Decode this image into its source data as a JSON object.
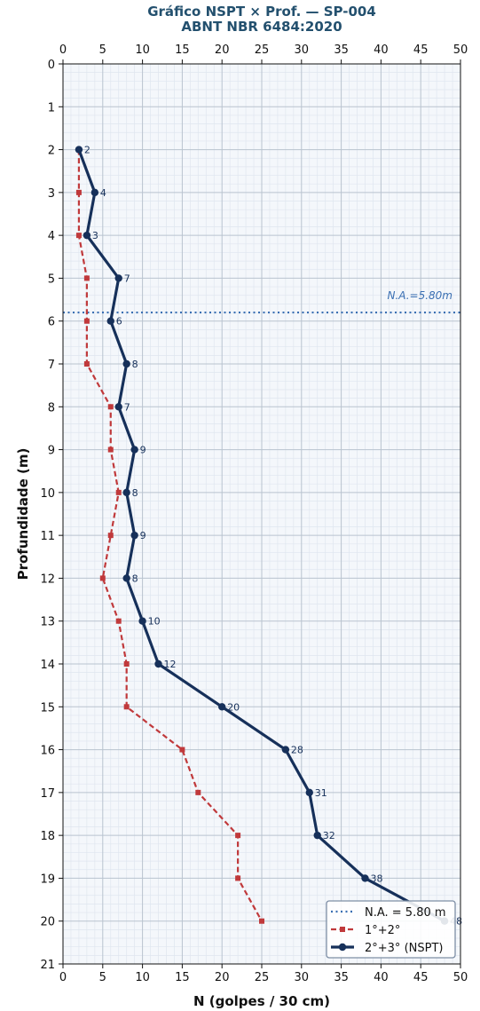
{
  "chart_data": {
    "type": "line",
    "title": "Gráfico NSPT × Prof. — SP-004",
    "subtitle": "ABNT NBR 6484:2020",
    "xlabel": "N (golpes / 30 cm)",
    "ylabel": "Profundidade (m)",
    "xlim": [
      0,
      50
    ],
    "ylim": [
      0,
      21
    ],
    "y_inverted": true,
    "x_ticks": [
      0,
      5,
      10,
      15,
      20,
      25,
      30,
      35,
      40,
      45,
      50
    ],
    "y_ticks": [
      0,
      1,
      2,
      3,
      4,
      5,
      6,
      7,
      8,
      9,
      10,
      11,
      12,
      13,
      14,
      15,
      16,
      17,
      18,
      19,
      20,
      21
    ],
    "x_ticks_top": true,
    "grid": true,
    "minor_grid": true,
    "legend_position": "bottom-right",
    "water_level": {
      "depth": 5.8,
      "label": "N.A.=5.80m",
      "legend": "N.A. = 5.80 m",
      "color": "#3a6fb3"
    },
    "series": [
      {
        "name": "1°+2°",
        "color": "#c0393b",
        "style": "dashed",
        "marker": "square",
        "x": [
          2,
          2,
          2,
          3,
          3,
          3,
          6,
          6,
          7,
          6,
          5,
          7,
          8,
          8,
          15,
          17,
          22,
          22,
          25
        ],
        "depth": [
          2,
          3,
          4,
          5,
          6,
          7,
          8,
          9,
          10,
          11,
          12,
          13,
          14,
          15,
          16,
          17,
          18,
          19,
          20
        ]
      },
      {
        "name": "2°+3° (NSPT)",
        "color": "#16305a",
        "style": "solid",
        "marker": "circle",
        "show_labels": true,
        "x": [
          2,
          4,
          3,
          7,
          6,
          8,
          7,
          9,
          8,
          9,
          8,
          10,
          12,
          20,
          28,
          31,
          32,
          38,
          48
        ],
        "depth": [
          2,
          3,
          4,
          5,
          6,
          7,
          8,
          9,
          10,
          11,
          12,
          13,
          14,
          15,
          16,
          17,
          18,
          19,
          20
        ]
      }
    ]
  }
}
